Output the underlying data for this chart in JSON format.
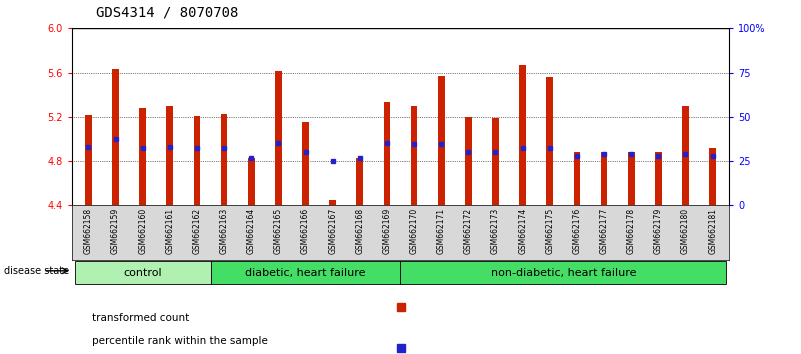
{
  "title": "GDS4314 / 8070708",
  "samples": [
    "GSM662158",
    "GSM662159",
    "GSM662160",
    "GSM662161",
    "GSM662162",
    "GSM662163",
    "GSM662164",
    "GSM662165",
    "GSM662166",
    "GSM662167",
    "GSM662168",
    "GSM662169",
    "GSM662170",
    "GSM662171",
    "GSM662172",
    "GSM662173",
    "GSM662174",
    "GSM662175",
    "GSM662176",
    "GSM662177",
    "GSM662178",
    "GSM662179",
    "GSM662180",
    "GSM662181"
  ],
  "red_values": [
    5.22,
    5.63,
    5.28,
    5.3,
    5.21,
    5.23,
    4.83,
    5.61,
    5.15,
    4.45,
    4.83,
    5.33,
    5.3,
    5.57,
    5.2,
    5.19,
    5.67,
    5.56,
    4.88,
    4.88,
    4.88,
    4.88,
    5.3,
    4.92
  ],
  "blue_values": [
    4.93,
    5.0,
    4.92,
    4.93,
    4.92,
    4.92,
    4.83,
    4.96,
    4.88,
    4.8,
    4.83,
    4.96,
    4.95,
    4.95,
    4.88,
    4.88,
    4.92,
    4.92,
    4.85,
    4.86,
    4.86,
    4.85,
    4.86,
    4.85
  ],
  "group_ranges": [
    [
      0,
      4
    ],
    [
      5,
      11
    ],
    [
      12,
      23
    ]
  ],
  "group_labels": [
    "control",
    "diabetic, heart failure",
    "non-diabetic, heart failure"
  ],
  "group_colors": [
    "#b0f0b0",
    "#44dd66",
    "#44dd66"
  ],
  "ylim": [
    4.4,
    6.0
  ],
  "y_ticks_left": [
    4.4,
    4.8,
    5.2,
    5.6,
    6.0
  ],
  "y_ticks_right_vals": [
    0,
    25,
    50,
    75,
    100
  ],
  "y_ticks_right_labels": [
    "0",
    "25",
    "50",
    "75",
    "100%"
  ],
  "bar_color": "#CC2200",
  "blue_color": "#2222CC",
  "bar_width": 0.25,
  "title_fontsize": 10,
  "tick_fontsize": 7,
  "group_label_fontsize": 8
}
